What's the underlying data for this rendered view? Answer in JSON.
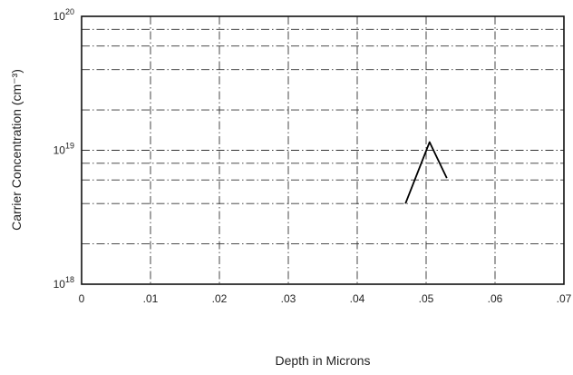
{
  "chart_data": {
    "type": "line",
    "title": "",
    "xlabel": "Depth in Microns",
    "ylabel": "Carrier Concentration (cm⁻³)",
    "xlim": [
      0,
      0.07
    ],
    "ylim": [
      1e+18,
      1e+20
    ],
    "yscale": "log",
    "grid": true,
    "x_ticks": [
      {
        "value": 0,
        "label": "0"
      },
      {
        "value": 0.01,
        "label": ".01"
      },
      {
        "value": 0.02,
        "label": ".02"
      },
      {
        "value": 0.03,
        "label": ".03"
      },
      {
        "value": 0.04,
        "label": ".04"
      },
      {
        "value": 0.05,
        "label": ".05"
      },
      {
        "value": 0.06,
        "label": ".06"
      },
      {
        "value": 0.07,
        "label": ".07"
      }
    ],
    "y_ticks": [
      {
        "value": 1e+18,
        "base": "10",
        "exp": "18"
      },
      {
        "value": 1e+19,
        "base": "10",
        "exp": "19"
      },
      {
        "value": 1e+20,
        "base": "10",
        "exp": "20"
      }
    ],
    "y_minor": [
      2e+18,
      4e+18,
      6e+18,
      8e+18,
      2e+19,
      4e+19,
      6e+19,
      8e+19
    ],
    "series": [
      {
        "x": [
          0.047,
          0.0505,
          0.053
        ],
        "y": [
          4e+18,
          1.15e+19,
          6.2e+18
        ]
      }
    ]
  }
}
